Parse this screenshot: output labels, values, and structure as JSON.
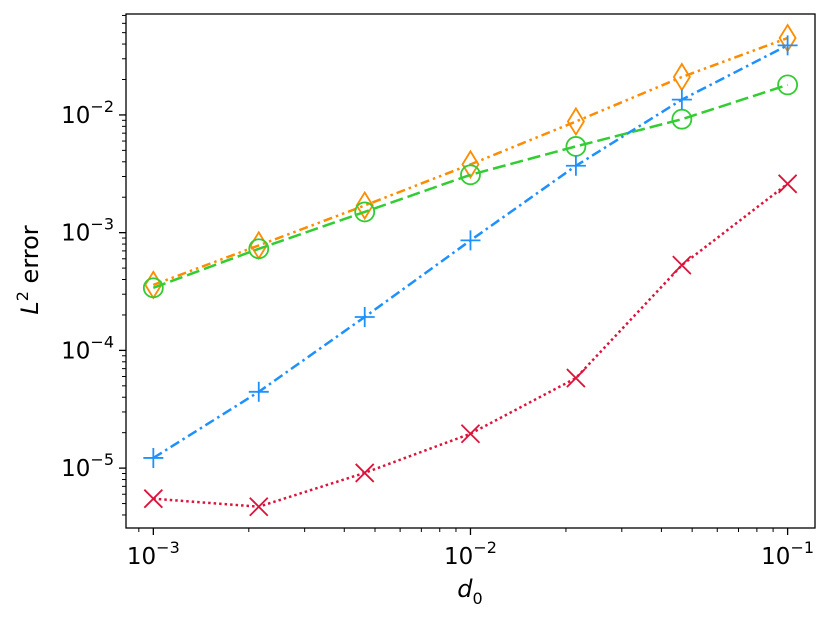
{
  "chart_data": {
    "type": "line",
    "title": "",
    "xlabel": "d_0",
    "ylabel": "L^2 error",
    "xscale": "log",
    "yscale": "log",
    "xlim": [
      0.00082,
      0.122
    ],
    "ylim": [
      3.1e-06,
      0.072
    ],
    "x": [
      0.001,
      0.00215,
      0.00464,
      0.01,
      0.0215,
      0.0464,
      0.1
    ],
    "x_ticks": [
      {
        "value": 0.001,
        "base": "10",
        "exp": "−3"
      },
      {
        "value": 0.01,
        "base": "10",
        "exp": "−2"
      },
      {
        "value": 0.1,
        "base": "10",
        "exp": "−1"
      }
    ],
    "y_ticks": [
      {
        "value": 1e-05,
        "base": "10",
        "exp": "−5"
      },
      {
        "value": 0.0001,
        "base": "10",
        "exp": "−4"
      },
      {
        "value": 0.001,
        "base": "10",
        "exp": "−3"
      },
      {
        "value": 0.01,
        "base": "10",
        "exp": "−2"
      }
    ],
    "series": [
      {
        "name": "series-diamond",
        "color": "#ff8c00",
        "marker": "diamond",
        "linestyle": "dashdotdot",
        "values": [
          0.00036,
          0.00078,
          0.0017,
          0.0038,
          0.0088,
          0.021,
          0.045
        ]
      },
      {
        "name": "series-circle",
        "color": "#32cd32",
        "marker": "circle",
        "linestyle": "dashed",
        "values": [
          0.00034,
          0.00073,
          0.0015,
          0.0031,
          0.0054,
          0.0092,
          0.018
        ]
      },
      {
        "name": "series-plus",
        "color": "#1e90ff",
        "marker": "plus",
        "linestyle": "dashdot",
        "values": [
          1.22e-05,
          4.45e-05,
          0.000192,
          0.00086,
          0.0037,
          0.0135,
          0.039
        ]
      },
      {
        "name": "series-x",
        "color": "#dc143c",
        "marker": "x",
        "linestyle": "dotted",
        "values": [
          5.5e-06,
          4.7e-06,
          9.1e-06,
          1.96e-05,
          5.82e-05,
          0.00053,
          0.0026
        ]
      }
    ]
  }
}
